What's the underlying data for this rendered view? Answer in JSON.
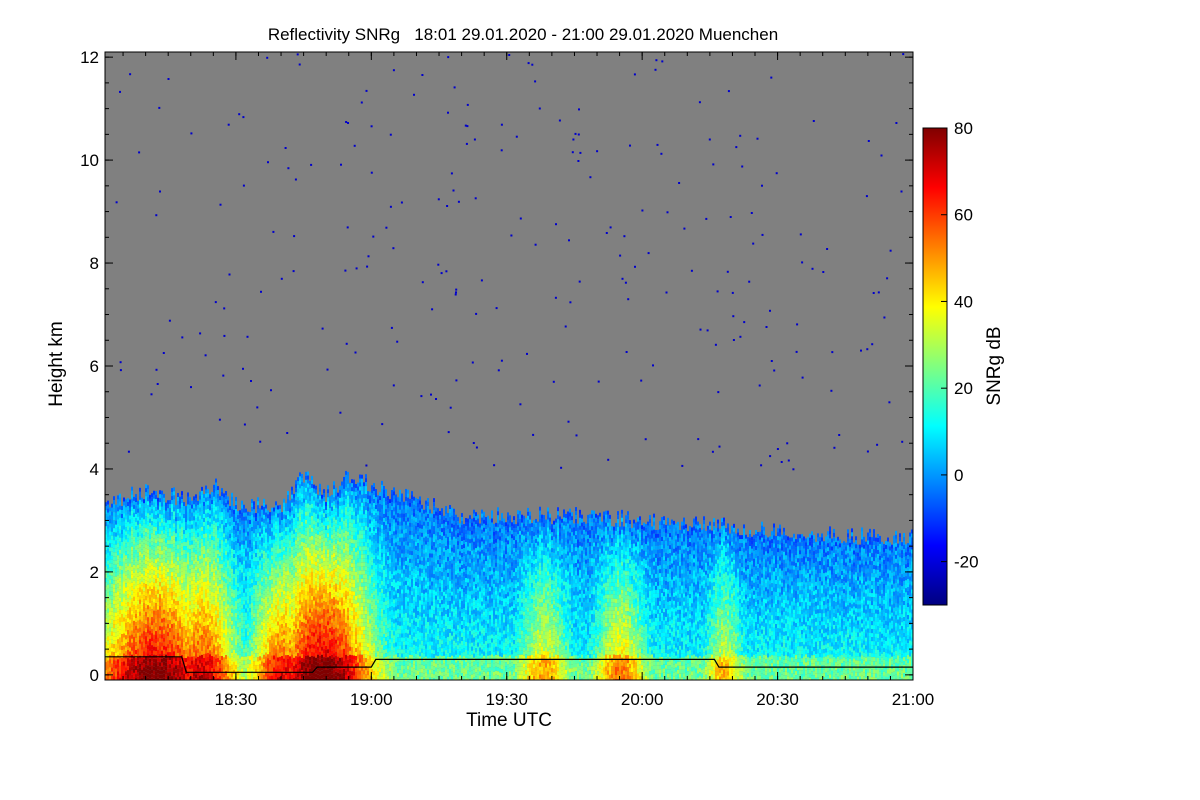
{
  "chart_data": {
    "type": "heatmap",
    "title": "Reflectivity SNRg   18:01 29.01.2020 - 21:00 29.01.2020 Muenchen",
    "xlabel": "Time UTC",
    "ylabel": "Height km",
    "x_range": [
      "18:01",
      "21:00"
    ],
    "x_ticks": [
      "18:30",
      "19:00",
      "19:30",
      "20:00",
      "20:30",
      "21:00"
    ],
    "y_range": [
      -0.1,
      12.1
    ],
    "y_ticks": [
      0,
      2,
      4,
      6,
      8,
      10,
      12
    ],
    "no_signal_color": "#808080",
    "noise_dot_color": "#0000cc",
    "colorbar": {
      "label": "SNRg dB",
      "range": [
        -30,
        80
      ],
      "ticks": [
        -20,
        0,
        20,
        40,
        60,
        80
      ],
      "colormap": [
        "#000080",
        "#0000ff",
        "#0080ff",
        "#00ffff",
        "#80ff80",
        "#ffff00",
        "#ff8000",
        "#ff0000",
        "#800000"
      ]
    },
    "echo_top_km": [
      [
        "18:01",
        3.3
      ],
      [
        "18:10",
        3.6
      ],
      [
        "18:20",
        3.4
      ],
      [
        "18:25",
        3.7
      ],
      [
        "18:30",
        3.3
      ],
      [
        "18:40",
        3.3
      ],
      [
        "18:45",
        3.9
      ],
      [
        "18:50",
        3.5
      ],
      [
        "18:55",
        3.9
      ],
      [
        "19:00",
        3.7
      ],
      [
        "19:10",
        3.4
      ],
      [
        "19:20",
        3.1
      ],
      [
        "19:30",
        3.1
      ],
      [
        "19:45",
        3.1
      ],
      [
        "20:00",
        3.0
      ],
      [
        "20:15",
        2.9
      ],
      [
        "20:30",
        2.8
      ],
      [
        "20:45",
        2.7
      ],
      [
        "21:00",
        2.7
      ]
    ],
    "cloud_base_km": [
      [
        "18:01",
        0.35
      ],
      [
        "18:18",
        0.35
      ],
      [
        "18:19",
        0.05
      ],
      [
        "18:47",
        0.05
      ],
      [
        "18:48",
        0.15
      ],
      [
        "19:00",
        0.15
      ],
      [
        "19:01",
        0.3
      ],
      [
        "20:16",
        0.3
      ],
      [
        "20:17",
        0.15
      ],
      [
        "21:00",
        0.15
      ]
    ]
  }
}
